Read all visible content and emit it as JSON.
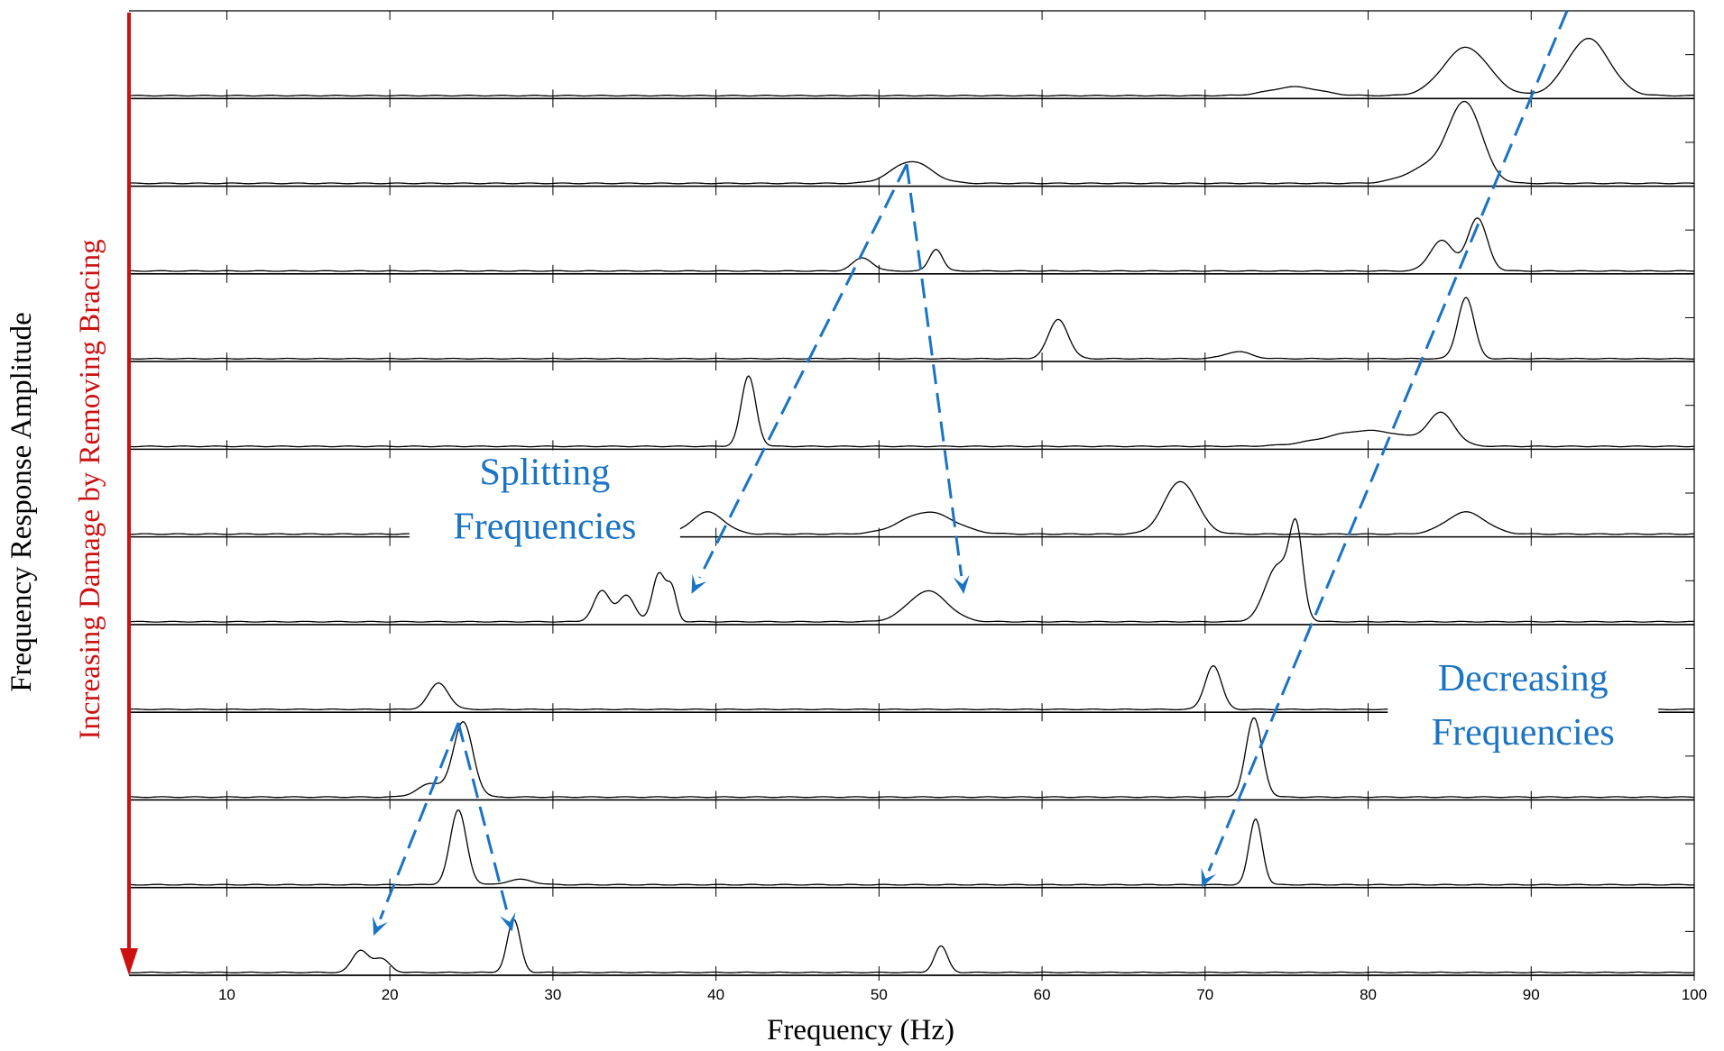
{
  "chart_data": {
    "type": "line",
    "xlabel": "Frequency (Hz)",
    "ylabel": "Frequency Response Amplitude",
    "side_label": "Increasing Damage by Removing Bracing",
    "xlim": [
      4,
      100
    ],
    "x_ticks": [
      10,
      20,
      30,
      40,
      50,
      60,
      70,
      80,
      90,
      100
    ],
    "grid": true,
    "traces": [
      {
        "peaks": [
          [
            75.5,
            0.1,
            1.5
          ],
          [
            86,
            0.55,
            1.4
          ],
          [
            93.5,
            0.65,
            1.3
          ]
        ]
      },
      {
        "peaks": [
          [
            52,
            0.25,
            1.2
          ],
          [
            84,
            0.2,
            1.5
          ],
          [
            86,
            0.85,
            1.0
          ]
        ]
      },
      {
        "peaks": [
          [
            49,
            0.15,
            0.6
          ],
          [
            53.5,
            0.25,
            0.4
          ],
          [
            84.5,
            0.35,
            0.7
          ],
          [
            86.7,
            0.6,
            0.6
          ]
        ]
      },
      {
        "peaks": [
          [
            61,
            0.45,
            0.6
          ],
          [
            72,
            0.08,
            0.8
          ],
          [
            86,
            0.7,
            0.5
          ]
        ]
      },
      {
        "peaks": [
          [
            42,
            0.8,
            0.45
          ],
          [
            80,
            0.18,
            2.5
          ],
          [
            84.5,
            0.35,
            0.8
          ]
        ]
      },
      {
        "peaks": [
          [
            39.5,
            0.25,
            1.0
          ],
          [
            53,
            0.25,
            1.6
          ],
          [
            68.5,
            0.6,
            1.0
          ],
          [
            86,
            0.25,
            1.2
          ]
        ]
      },
      {
        "peaks": [
          [
            33,
            0.35,
            0.5
          ],
          [
            34.5,
            0.3,
            0.5
          ],
          [
            36.5,
            0.55,
            0.4
          ],
          [
            37.3,
            0.35,
            0.3
          ],
          [
            53,
            0.35,
            1.2
          ],
          [
            74.5,
            0.65,
            0.8
          ],
          [
            75.6,
            0.9,
            0.4
          ]
        ]
      },
      {
        "peaks": [
          [
            23,
            0.3,
            0.6
          ],
          [
            70.5,
            0.5,
            0.5
          ]
        ]
      },
      {
        "peaks": [
          [
            22.5,
            0.15,
            0.8
          ],
          [
            24.5,
            0.85,
            0.6
          ],
          [
            73,
            0.9,
            0.5
          ]
        ]
      },
      {
        "peaks": [
          [
            24.2,
            0.85,
            0.5
          ],
          [
            28,
            0.06,
            0.8
          ],
          [
            73.1,
            0.75,
            0.4
          ]
        ]
      },
      {
        "peaks": [
          [
            18.2,
            0.25,
            0.5
          ],
          [
            19.5,
            0.15,
            0.5
          ],
          [
            27.6,
            0.6,
            0.4
          ],
          [
            53.8,
            0.3,
            0.4
          ]
        ]
      }
    ],
    "annotations": [
      {
        "text_lines": [
          "Splitting",
          "Frequencies"
        ]
      },
      {
        "text_lines": [
          "Decreasing",
          "Frequencies"
        ]
      }
    ],
    "colors": {
      "trace": "#000000",
      "grid": "#000000",
      "arrow": "#1a73c4",
      "annotation": "#1a73c4",
      "damage_axis": "#cc1111"
    }
  }
}
